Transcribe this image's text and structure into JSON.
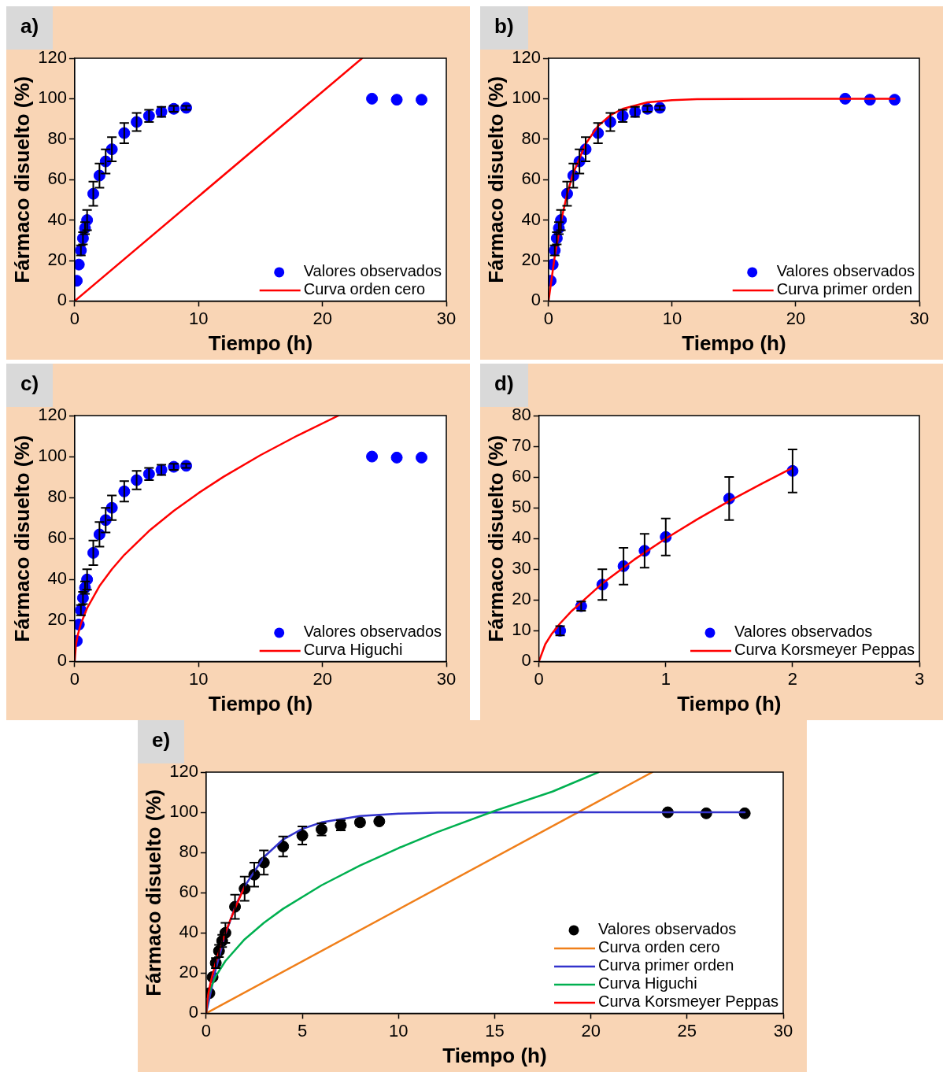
{
  "chart_data": [
    {
      "type": "scatter",
      "title": "a)",
      "xlabel": "Tiempo (h)",
      "ylabel": "Fármaco disuelto (%)",
      "xlim": [
        0,
        30
      ],
      "xticks": [
        0,
        10,
        20,
        30
      ],
      "ylim": [
        0,
        120
      ],
      "yticks": [
        0,
        20,
        40,
        60,
        80,
        100,
        120
      ],
      "grid": false,
      "legend": "bottom right",
      "series": [
        {
          "name": "Valores observados",
          "type": "scatter",
          "marker": "circle",
          "color": "#0000ff",
          "x": [
            0.167,
            0.333,
            0.5,
            0.667,
            0.833,
            1,
            1.5,
            2,
            2.5,
            3,
            4,
            5,
            6,
            7,
            8,
            9,
            24,
            26,
            28
          ],
          "values": [
            10,
            18,
            25,
            31,
            36,
            40,
            53,
            62,
            69,
            75,
            83,
            88.5,
            91.5,
            93.5,
            95,
            95.5,
            100,
            99.5,
            99.5
          ],
          "errors": [
            null,
            null,
            2.5,
            3,
            3,
            5,
            6,
            6,
            6,
            6,
            5,
            4.5,
            3,
            2.5,
            1.5,
            1,
            null,
            null,
            null
          ]
        },
        {
          "name": "Curva orden cero",
          "type": "line",
          "marker": "none",
          "color": "#ff0000",
          "x": [
            0,
            23.2
          ],
          "values": [
            0,
            120
          ]
        }
      ]
    },
    {
      "type": "scatter",
      "title": "b)",
      "xlabel": "Tiempo (h)",
      "ylabel": "Fármaco disuelto (%)",
      "xlim": [
        0,
        30
      ],
      "xticks": [
        0,
        10,
        20,
        30
      ],
      "ylim": [
        0,
        120
      ],
      "yticks": [
        0,
        20,
        40,
        60,
        80,
        100,
        120
      ],
      "grid": false,
      "legend": "bottom right",
      "series": [
        {
          "name": "Valores observados",
          "type": "scatter",
          "marker": "circle",
          "color": "#0000ff",
          "x": [
            0.167,
            0.333,
            0.5,
            0.667,
            0.833,
            1,
            1.5,
            2,
            2.5,
            3,
            4,
            5,
            6,
            7,
            8,
            9,
            24,
            26,
            28
          ],
          "values": [
            10,
            18,
            25,
            31,
            36,
            40,
            53,
            62,
            69,
            75,
            83,
            88.5,
            91.5,
            93.5,
            95,
            95.5,
            100,
            99.5,
            99.5
          ],
          "errors": [
            null,
            null,
            2.5,
            3,
            3,
            5,
            6,
            6,
            6,
            6,
            5,
            4.5,
            3,
            2.5,
            1.5,
            1,
            null,
            null,
            null
          ]
        },
        {
          "name": "Curva primer orden",
          "type": "line",
          "marker": "none",
          "color": "#ff0000",
          "x": [
            0,
            0.5,
            1,
            1.5,
            2,
            3,
            4,
            5,
            6,
            8,
            10,
            12,
            15,
            20,
            28
          ],
          "values": [
            0,
            22.1,
            39.3,
            52.8,
            63.2,
            77.7,
            86.5,
            91.8,
            95,
            98.2,
            99.3,
            99.8,
            99.9,
            100,
            100
          ]
        }
      ]
    },
    {
      "type": "scatter",
      "title": "c)",
      "xlabel": "Tiempo (h)",
      "ylabel": "Fármaco disuelto (%)",
      "xlim": [
        0,
        30
      ],
      "xticks": [
        0,
        10,
        20,
        30
      ],
      "ylim": [
        0,
        120
      ],
      "yticks": [
        0,
        20,
        40,
        60,
        80,
        100,
        120
      ],
      "grid": false,
      "legend": "bottom right",
      "series": [
        {
          "name": "Valores observados",
          "type": "scatter",
          "marker": "circle",
          "color": "#0000ff",
          "x": [
            0.167,
            0.333,
            0.5,
            0.667,
            0.833,
            1,
            1.5,
            2,
            2.5,
            3,
            4,
            5,
            6,
            7,
            8,
            9,
            24,
            26,
            28
          ],
          "values": [
            10,
            18,
            25,
            31,
            36,
            40,
            53,
            62,
            69,
            75,
            83,
            88.5,
            91.5,
            93.5,
            95,
            95.5,
            100,
            99.5,
            99.5
          ],
          "errors": [
            null,
            null,
            2.5,
            3,
            3,
            5,
            6,
            6,
            6,
            6,
            5,
            4.5,
            3,
            2.5,
            1.5,
            1,
            null,
            null,
            null
          ]
        },
        {
          "name": "Curva Higuchi",
          "type": "line",
          "marker": "none",
          "color": "#ff0000",
          "x": [
            0,
            0.1,
            0.25,
            0.5,
            1,
            2,
            3,
            4,
            6,
            8,
            10,
            12,
            15,
            18,
            21.3
          ],
          "values": [
            0,
            8.2,
            13,
            18.4,
            26,
            36.8,
            45,
            52,
            63.7,
            73.5,
            82.2,
            90.1,
            100.7,
            110.3,
            120
          ]
        }
      ]
    },
    {
      "type": "scatter",
      "title": "d)",
      "xlabel": "Tiempo (h)",
      "ylabel": "Fármaco disuelto (%)",
      "xlim": [
        0,
        3
      ],
      "xticks": [
        0,
        1,
        2,
        3
      ],
      "ylim": [
        0,
        80
      ],
      "yticks": [
        0,
        10,
        20,
        30,
        40,
        50,
        60,
        70,
        80
      ],
      "grid": false,
      "legend": "bottom right",
      "series": [
        {
          "name": "Valores observados",
          "type": "scatter",
          "marker": "circle",
          "color": "#0000ff",
          "x": [
            0.167,
            0.333,
            0.5,
            0.667,
            0.833,
            1,
            1.5,
            2
          ],
          "values": [
            10,
            18,
            25,
            31,
            36,
            40.5,
            53,
            62
          ],
          "errors": [
            1.5,
            1.5,
            5,
            6,
            5.5,
            6,
            7,
            7
          ]
        },
        {
          "name": "Curva Korsmeyer Peppas",
          "type": "line",
          "marker": "none",
          "color": "#ff0000",
          "x": [
            0,
            0.05,
            0.1,
            0.167,
            0.25,
            0.5,
            0.75,
            1,
            1.25,
            1.5,
            1.75,
            2
          ],
          "values": [
            0,
            5.6,
            8.9,
            12.4,
            16.1,
            25.4,
            33.1,
            40,
            46.3,
            52.2,
            57.7,
            63
          ]
        }
      ]
    },
    {
      "type": "scatter",
      "title": "e)",
      "xlabel": "Tiempo (h)",
      "ylabel": "Fármaco disuelto (%)",
      "xlim": [
        0,
        30
      ],
      "xticks": [
        0,
        5,
        10,
        15,
        20,
        25,
        30
      ],
      "ylim": [
        0,
        120
      ],
      "yticks": [
        0,
        20,
        40,
        60,
        80,
        100,
        120
      ],
      "grid": false,
      "legend": "bottom right",
      "series": [
        {
          "name": "Valores observados",
          "type": "scatter",
          "marker": "circle",
          "color": "#000000",
          "x": [
            0.167,
            0.333,
            0.5,
            0.667,
            0.833,
            1,
            1.5,
            2,
            2.5,
            3,
            4,
            5,
            6,
            7,
            8,
            9,
            24,
            26,
            28
          ],
          "values": [
            10,
            18,
            25,
            31,
            36,
            40,
            53,
            62,
            69,
            75,
            83,
            88.5,
            91.5,
            93.5,
            95,
            95.5,
            100,
            99.5,
            99.5
          ],
          "errors": [
            null,
            null,
            2.5,
            3,
            3,
            5,
            6,
            6,
            6,
            6,
            5,
            4.5,
            3,
            2.5,
            1.5,
            1,
            null,
            null,
            null
          ]
        },
        {
          "name": "Curva orden cero",
          "type": "line",
          "marker": "none",
          "color": "#f07f1a",
          "x": [
            0,
            23.2
          ],
          "values": [
            0,
            120
          ]
        },
        {
          "name": "Curva primer orden",
          "type": "line",
          "marker": "none",
          "color": "#3333cc",
          "x": [
            0,
            0.5,
            1,
            1.5,
            2,
            3,
            4,
            5,
            6,
            8,
            10,
            12,
            15,
            20,
            28
          ],
          "values": [
            0,
            22.1,
            39.3,
            52.8,
            63.2,
            77.7,
            86.5,
            91.8,
            95,
            98.2,
            99.3,
            99.8,
            99.9,
            100,
            100
          ]
        },
        {
          "name": "Curva Higuchi",
          "type": "line",
          "marker": "none",
          "color": "#00b050",
          "x": [
            0,
            0.1,
            0.25,
            0.5,
            1,
            2,
            3,
            4,
            6,
            8,
            10,
            12,
            15,
            18,
            20.4
          ],
          "values": [
            0,
            8.2,
            13,
            18.4,
            26,
            36.8,
            45,
            52,
            63.7,
            73.5,
            82.2,
            90.1,
            100.7,
            110.3,
            120
          ]
        },
        {
          "name": "Curva Korsmeyer Peppas",
          "type": "line",
          "marker": "none",
          "color": "#ff0000",
          "x": [
            0,
            0.05,
            0.1,
            0.167,
            0.25,
            0.5,
            0.75,
            1,
            1.25,
            1.5,
            1.75,
            2
          ],
          "values": [
            0,
            5.6,
            8.9,
            12.4,
            16.1,
            25.4,
            33.1,
            40,
            46.3,
            52.2,
            57.7,
            63
          ]
        }
      ]
    }
  ]
}
